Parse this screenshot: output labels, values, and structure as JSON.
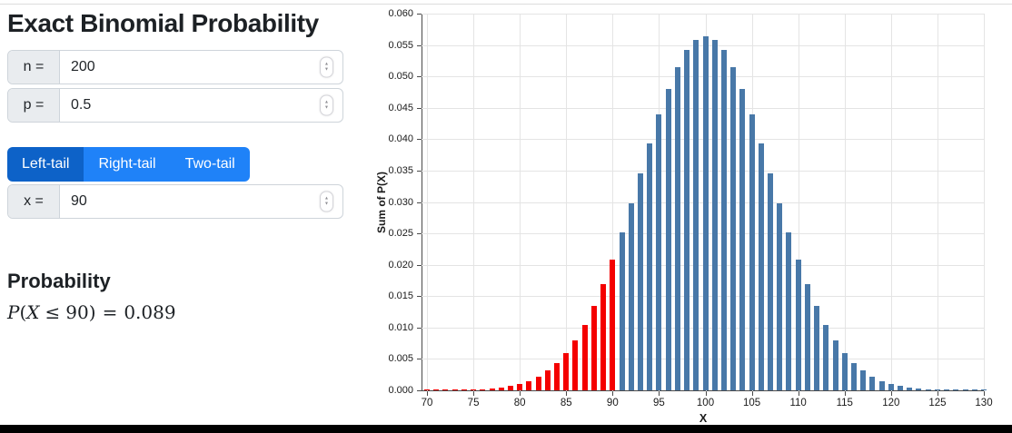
{
  "header": {
    "title": "Exact Binomial Probability"
  },
  "icons": {
    "stepper_up": "▲",
    "stepper_down": "▼"
  },
  "inputs": {
    "n": {
      "label": "n =",
      "value": "200"
    },
    "p": {
      "label": "p =",
      "value": "0.5"
    },
    "x": {
      "label": "x =",
      "value": "90"
    }
  },
  "tail_tabs": [
    {
      "label": "Left-tail",
      "active": true
    },
    {
      "label": "Right-tail",
      "active": false
    },
    {
      "label": "Two-tail",
      "active": false
    }
  ],
  "result": {
    "heading": "Probability",
    "formula": {
      "func": "P",
      "open_paren": "(",
      "variable": "X",
      "relation": "≤",
      "x_value": "90",
      "close_paren": ")",
      "equals": "=",
      "probability": "0.089"
    }
  },
  "chart_data": {
    "type": "bar",
    "title": "",
    "xlabel": "X",
    "ylabel": "Sum of P(X)",
    "ylim": [
      0,
      0.06
    ],
    "grid": true,
    "x_ticks": [
      70,
      75,
      80,
      85,
      90,
      95,
      100,
      105,
      110,
      115,
      120,
      125,
      130
    ],
    "y_ticks": [
      0,
      0.005,
      0.01,
      0.015,
      0.02,
      0.025,
      0.03,
      0.035,
      0.04,
      0.045,
      0.05,
      0.055,
      0.06
    ],
    "highlight_x_max": 90,
    "highlight_color": "#f40000",
    "bar_color": "#4878a8",
    "x": [
      70,
      71,
      72,
      73,
      74,
      75,
      76,
      77,
      78,
      79,
      80,
      81,
      82,
      83,
      84,
      85,
      86,
      87,
      88,
      89,
      90,
      91,
      92,
      93,
      94,
      95,
      96,
      97,
      98,
      99,
      100,
      101,
      102,
      103,
      104,
      105,
      106,
      107,
      108,
      109,
      110,
      111,
      112,
      113,
      114,
      115,
      116,
      117,
      118,
      119,
      120,
      121,
      122,
      123,
      124,
      125,
      126,
      127,
      128,
      129,
      130
    ],
    "values": [
      6.3e-06,
      1.16e-05,
      2.08e-05,
      3.64e-05,
      6.25e-05,
      0.000105,
      0.000173,
      0.000278,
      0.000439,
      0.000678,
      0.001025,
      0.001519,
      0.002204,
      0.003133,
      0.004364,
      0.005955,
      0.007963,
      0.010435,
      0.0134,
      0.016862,
      0.020797,
      0.025139,
      0.029784,
      0.034588,
      0.039372,
      0.043933,
      0.048052,
      0.051521,
      0.054149,
      0.05579,
      0.056348,
      0.05579,
      0.054149,
      0.051521,
      0.048052,
      0.043933,
      0.039372,
      0.034588,
      0.029784,
      0.025139,
      0.020797,
      0.016862,
      0.0134,
      0.010435,
      0.007963,
      0.005955,
      0.004364,
      0.003133,
      0.002204,
      0.001519,
      0.001025,
      0.000678,
      0.000439,
      0.000278,
      0.000173,
      0.000105,
      6.25e-05,
      3.64e-05,
      2.08e-05,
      1.16e-05,
      6.3e-06
    ]
  }
}
